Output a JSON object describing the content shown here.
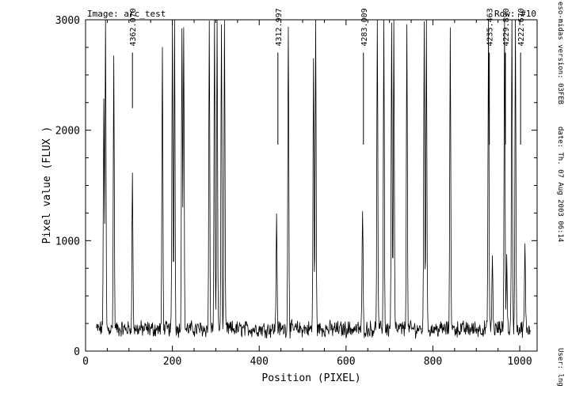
{
  "header": {
    "image_label": "Image: arc_test",
    "row_label": "Row: #10"
  },
  "side_info": {
    "version": "eso-midas version: 03FEB",
    "date": "date: Th. 07 Aug 2003 06:14",
    "user": "User: lng"
  },
  "chart_data": {
    "type": "line",
    "title": "",
    "xlabel": "Position (PIXEL)",
    "ylabel": "Pixel value (FLUX )",
    "xlim": [
      0,
      1040
    ],
    "ylim": [
      0,
      3000
    ],
    "xticks": [
      0,
      200,
      400,
      600,
      800,
      1000
    ],
    "yticks": [
      0,
      1000,
      2000,
      3000
    ],
    "grid": false,
    "baseline": 200,
    "x_start": 25,
    "x_end": 1025,
    "peaks": [
      {
        "x": 42,
        "height": 2300
      },
      {
        "x": 46,
        "height": 3000
      },
      {
        "x": 65,
        "height": 2650
      },
      {
        "x": 108,
        "height": 1600
      },
      {
        "x": 177,
        "height": 2750
      },
      {
        "x": 200,
        "height": 3000
      },
      {
        "x": 205,
        "height": 3000
      },
      {
        "x": 222,
        "height": 3000
      },
      {
        "x": 226,
        "height": 3000
      },
      {
        "x": 285,
        "height": 3000
      },
      {
        "x": 297,
        "height": 3000
      },
      {
        "x": 303,
        "height": 3000
      },
      {
        "x": 313,
        "height": 3000
      },
      {
        "x": 320,
        "height": 3000
      },
      {
        "x": 440,
        "height": 1250
      },
      {
        "x": 467,
        "height": 3000
      },
      {
        "x": 525,
        "height": 2650
      },
      {
        "x": 530,
        "height": 3000
      },
      {
        "x": 638,
        "height": 1300
      },
      {
        "x": 672,
        "height": 3000
      },
      {
        "x": 687,
        "height": 3000
      },
      {
        "x": 705,
        "height": 3000
      },
      {
        "x": 710,
        "height": 3000
      },
      {
        "x": 740,
        "height": 3000
      },
      {
        "x": 780,
        "height": 3000
      },
      {
        "x": 785,
        "height": 3000
      },
      {
        "x": 840,
        "height": 2950
      },
      {
        "x": 928,
        "height": 3000
      },
      {
        "x": 937,
        "height": 850
      },
      {
        "x": 965,
        "height": 3000
      },
      {
        "x": 970,
        "height": 850
      },
      {
        "x": 982,
        "height": 3000
      },
      {
        "x": 990,
        "height": 3000
      },
      {
        "x": 1012,
        "height": 950
      }
    ],
    "line_ids": [
      {
        "label": "4362.070",
        "x": 108,
        "y_top": 2760,
        "y_bottom": 2200
      },
      {
        "label": "4312.997",
        "x": 443,
        "y_top": 2760,
        "y_bottom": 1870
      },
      {
        "label": "4283.009",
        "x": 640,
        "y_top": 2760,
        "y_bottom": 1870
      },
      {
        "label": "4235.463",
        "x": 930,
        "y_top": 2760,
        "y_bottom": 1870
      },
      {
        "label": "4229.890",
        "x": 967,
        "y_top": 2760,
        "y_bottom": 1870
      },
      {
        "label": "4222.670",
        "x": 1002,
        "y_top": 2760,
        "y_bottom": 1870
      }
    ]
  }
}
